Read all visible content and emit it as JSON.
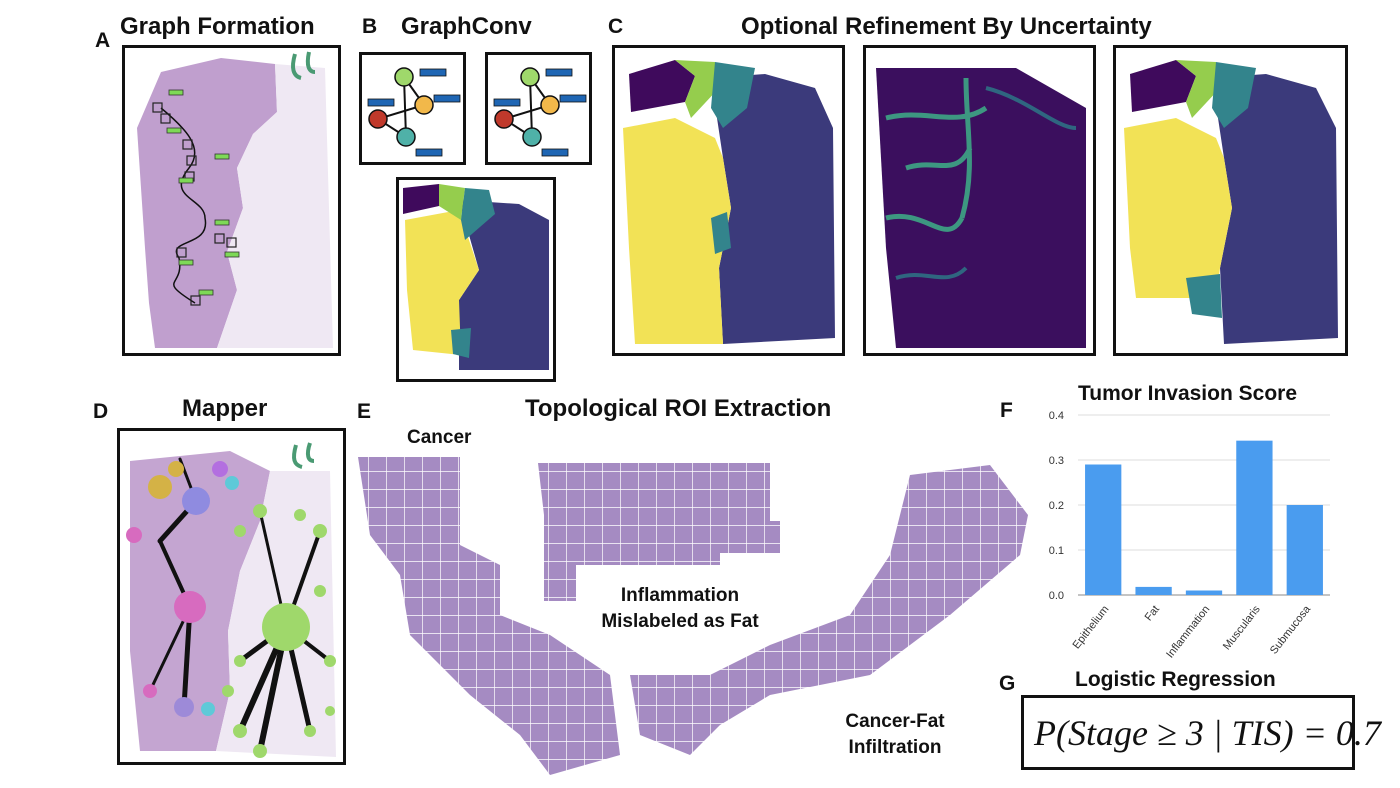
{
  "panels": {
    "a": {
      "letter": "A",
      "title": "Graph Formation"
    },
    "b": {
      "letter": "B",
      "title": "GraphConv"
    },
    "c": {
      "letter": "C",
      "title": "Optional Refinement By Uncertainty"
    },
    "d": {
      "letter": "D",
      "title": "Mapper"
    },
    "e": {
      "letter": "E",
      "title": "Topological ROI Extraction",
      "labels": {
        "cancer": "Cancer",
        "inflammation": "Inflammation Mislabeled as Fat",
        "cancer_fat": "Cancer-Fat Infiltration"
      }
    },
    "f": {
      "letter": "F",
      "title": "Tumor Invasion Score"
    },
    "g": {
      "letter": "G",
      "title": "Logistic Regression",
      "equation": "P(Stage ≥ 3 | TIS) = 0.7"
    }
  },
  "colors": {
    "bar": "#4a9cef",
    "yellow": "#f2e256",
    "navy": "#3b3a7b",
    "dark_purple": "#3f0a5c",
    "teal": "#33848c",
    "green": "#95cd4d",
    "tissue": "#b58ec5",
    "node_green": "#9fd86b",
    "node_orange": "#f2b84a",
    "node_red": "#c0392b",
    "node_teal": "#4fb1a8",
    "edge_blue": "#1f66b4"
  },
  "chart_data": {
    "type": "bar",
    "title": "Tumor Invasion Score",
    "categories": [
      "Epithelium",
      "Fat",
      "Inflammation",
      "Muscularis",
      "Submucosa"
    ],
    "values": [
      0.29,
      0.018,
      0.01,
      0.343,
      0.2
    ],
    "ylim": [
      0,
      0.4
    ],
    "yticks": [
      "0.0",
      "0.1",
      "0.2",
      "0.3",
      "0.4"
    ],
    "grid": true,
    "xlabel": "",
    "ylabel": ""
  }
}
